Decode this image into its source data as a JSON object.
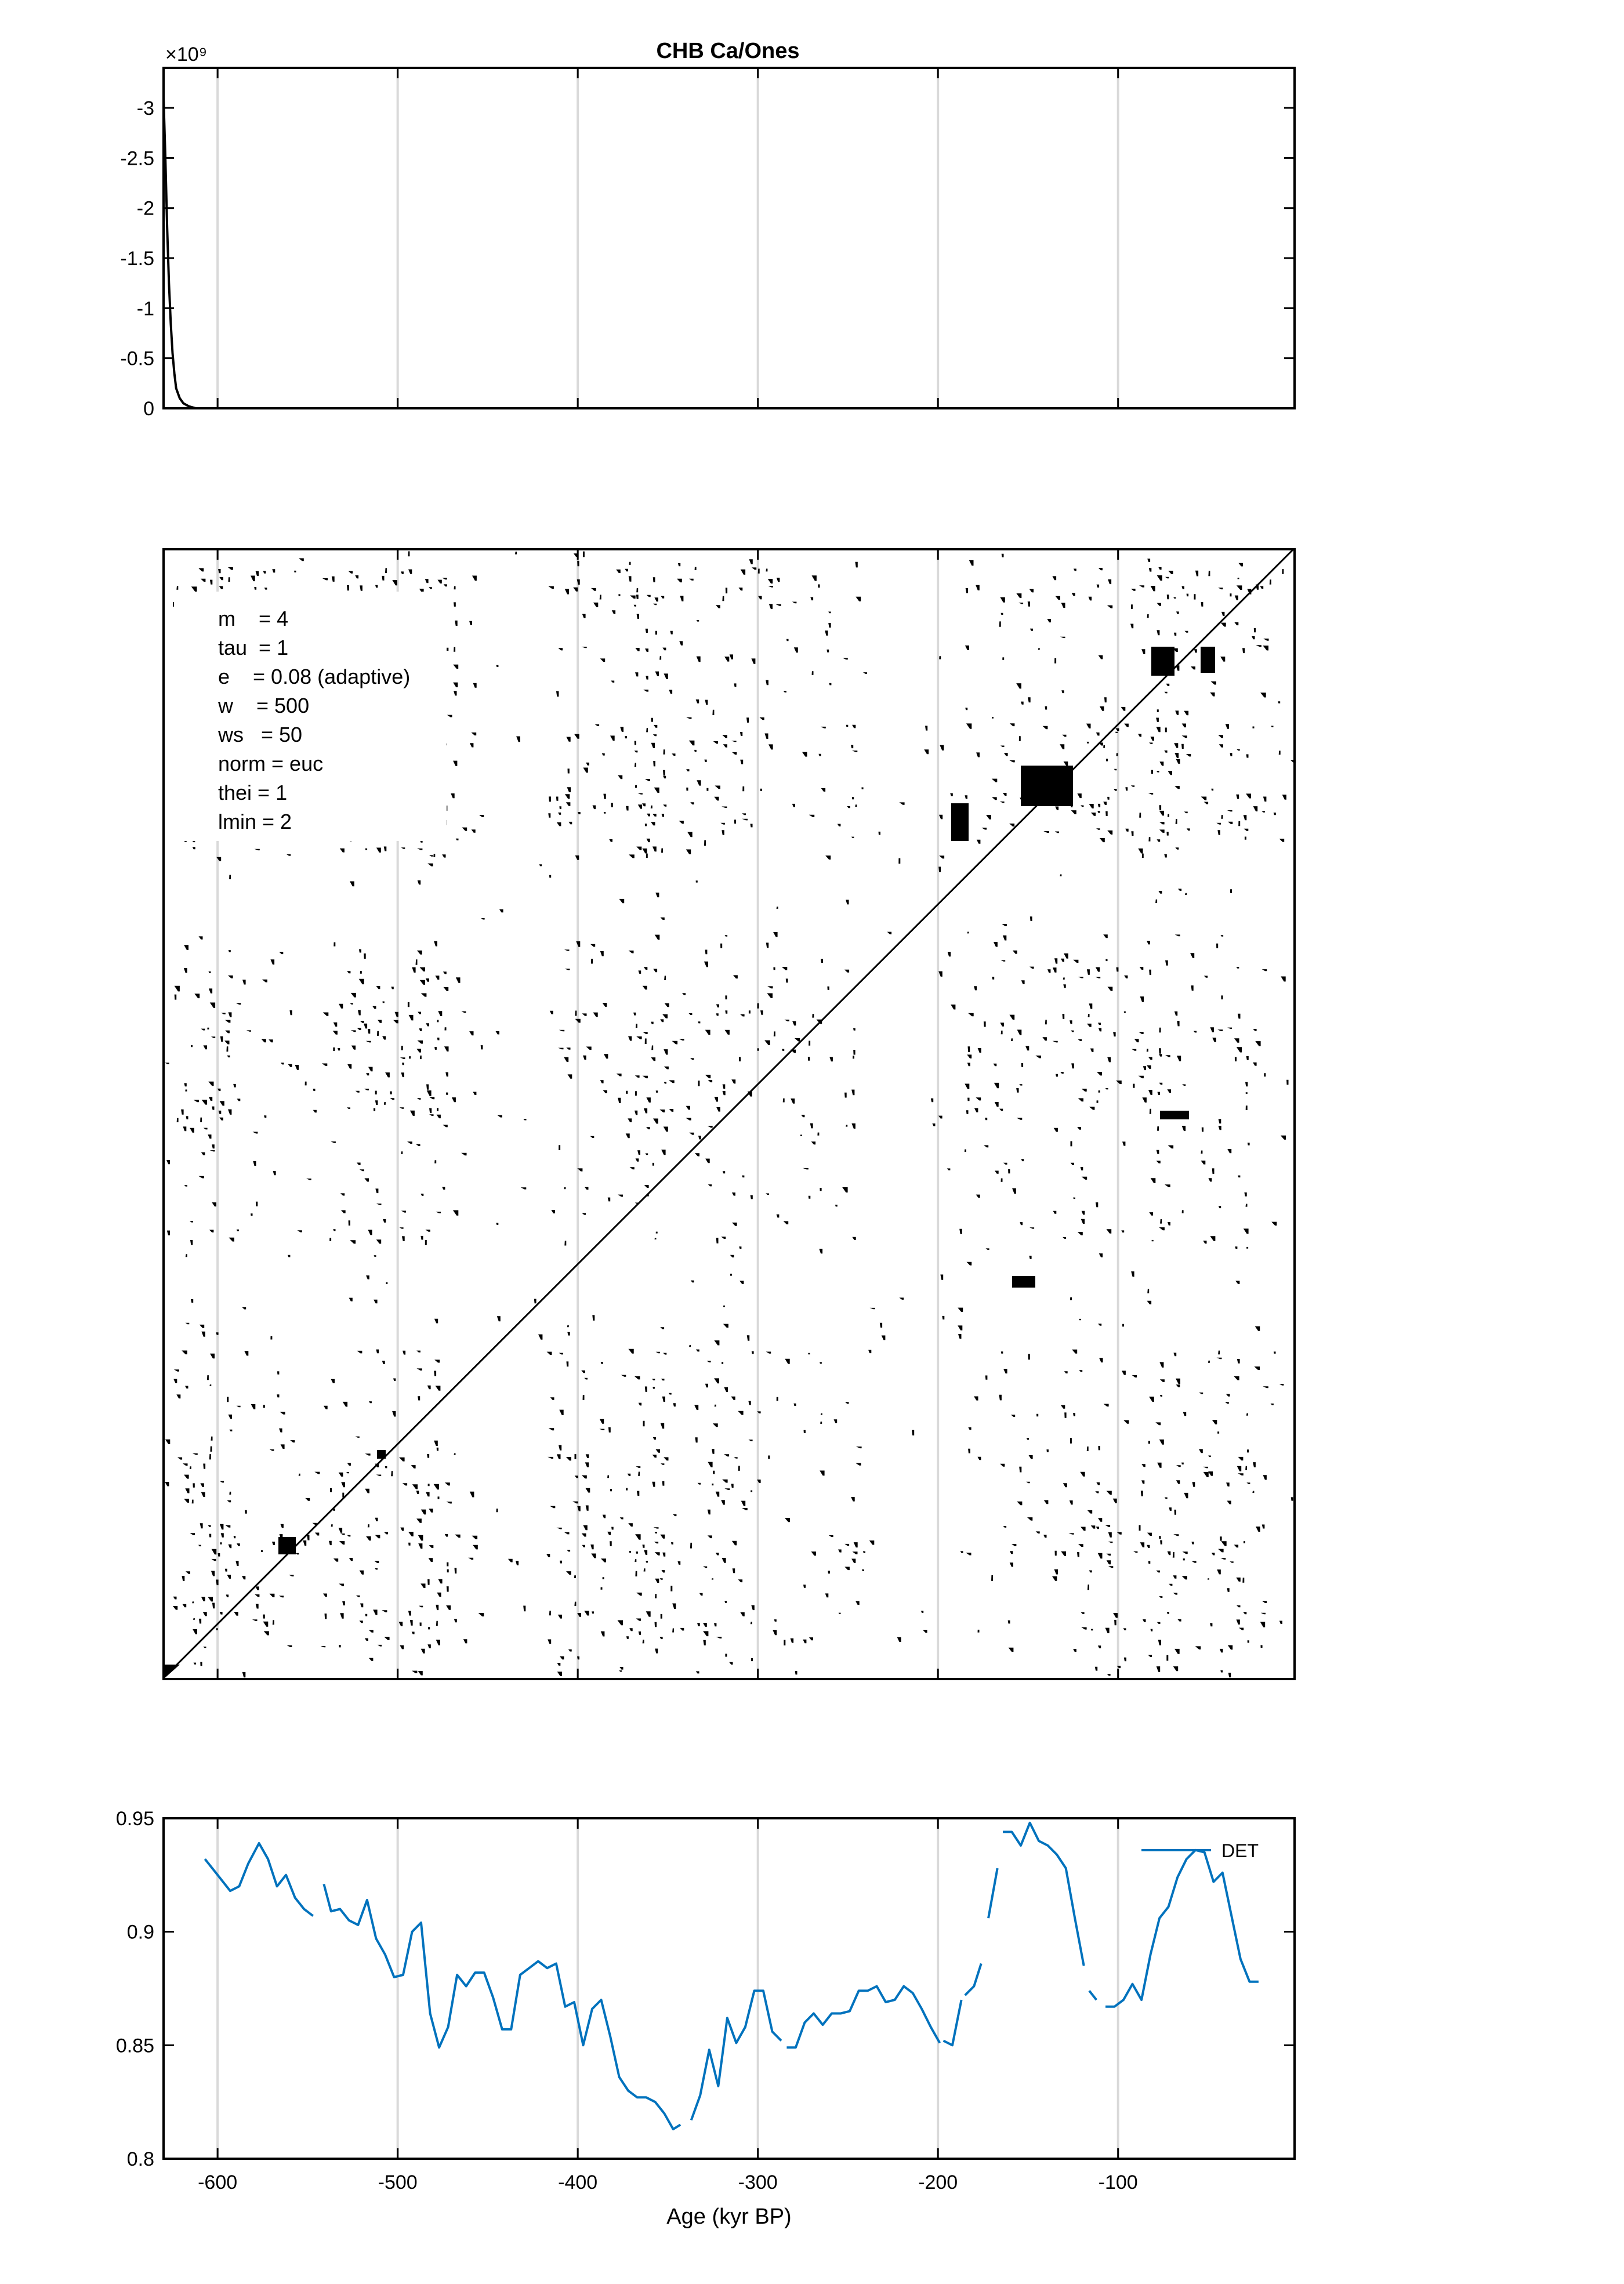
{
  "figure": {
    "title": "CHB Ca/Ones",
    "params": [
      "m    = 4",
      "tau  = 1",
      "e    = 0.08 (adaptive)",
      "w    = 500",
      "ws   = 50",
      "norm = euc",
      "thei = 1",
      "lmin = 2"
    ],
    "colors": {
      "axis": "#000000",
      "grid": "#d9d9d9",
      "det_line": "#0072bd",
      "recurrence": "#000000"
    }
  },
  "chart_data": [
    {
      "type": "line",
      "title": "CHB Ca/Ones",
      "ylabel": "",
      "xlabel": "",
      "y_exponent": "×10⁹",
      "y_direction": "reversed",
      "xlim": [
        -630,
        -2
      ],
      "ylim": [
        0,
        -3.4
      ],
      "x_grid": [
        -600,
        -500,
        -400,
        -300,
        -200,
        -100
      ],
      "yticks": [
        0,
        -0.5,
        -1,
        -1.5,
        -2,
        -2.5,
        -3
      ],
      "ytick_labels": [
        "0",
        "-0.5",
        "-1",
        "-1.5",
        "-2",
        "-2.5",
        "-3"
      ],
      "series": [
        {
          "x": [
            -630,
            -629,
            -628,
            -627,
            -626,
            -625,
            -624,
            -623,
            -621,
            -619,
            -616,
            -612,
            -590,
            -400,
            -200,
            -2
          ],
          "y": [
            -3.1,
            -2.5,
            -1.8,
            -1.25,
            -0.85,
            -0.55,
            -0.35,
            -0.2,
            -0.1,
            -0.05,
            -0.02,
            0,
            0,
            0,
            0,
            0
          ]
        }
      ]
    },
    {
      "type": "heatmap",
      "description_kind": "recurrence plot (binary)",
      "xlim": [
        -630,
        -2
      ],
      "ylim": [
        -630,
        -2
      ],
      "x_grid": [
        -600,
        -500,
        -400,
        -300,
        -200,
        -100
      ]
    },
    {
      "type": "line",
      "xlabel": "Age (kyr BP)",
      "ylabel": "",
      "xlim": [
        -630,
        -2
      ],
      "ylim": [
        0.8,
        0.95
      ],
      "xticks": [
        -600,
        -500,
        -400,
        -300,
        -200,
        -100
      ],
      "xtick_labels": [
        "-600",
        "-500",
        "-400",
        "-300",
        "-200",
        "-100"
      ],
      "yticks": [
        0.8,
        0.85,
        0.9,
        0.95
      ],
      "ytick_labels": [
        "0.8",
        "0.85",
        "0.9",
        "0.95"
      ],
      "legend": {
        "entries": [
          "DET"
        ],
        "location": "top-right"
      },
      "series": [
        {
          "name": "DET",
          "segments": [
            {
              "x": [
                -607,
                -600,
                -593,
                -588,
                -583,
                -577,
                -572,
                -567,
                -562,
                -557,
                -552,
                -547
              ],
              "y": [
                0.932,
                0.925,
                0.918,
                0.92,
                0.93,
                0.939,
                0.932,
                0.92,
                0.925,
                0.915,
                0.91,
                0.907
              ]
            },
            {
              "x": [
                -541,
                -537,
                -532,
                -527,
                -522,
                -517,
                -512,
                -507,
                -502,
                -497,
                -492,
                -487,
                -482,
                -477,
                -472,
                -467,
                -462,
                -457,
                -452,
                -447,
                -442,
                -437,
                -432,
                -427,
                -422,
                -417,
                -412,
                -407,
                -402,
                -397,
                -392,
                -387,
                -382,
                -377,
                -372,
                -367,
                -362,
                -357,
                -352,
                -347,
                -343
              ],
              "y": [
                0.921,
                0.909,
                0.91,
                0.905,
                0.903,
                0.914,
                0.897,
                0.89,
                0.88,
                0.881,
                0.9,
                0.904,
                0.864,
                0.849,
                0.858,
                0.881,
                0.876,
                0.882,
                0.882,
                0.871,
                0.857,
                0.857,
                0.881,
                0.884,
                0.887,
                0.884,
                0.886,
                0.867,
                0.869,
                0.85,
                0.866,
                0.87,
                0.854,
                0.836,
                0.83,
                0.827,
                0.827,
                0.825,
                0.82,
                0.813,
                0.815
              ]
            },
            {
              "x": [
                -337,
                -332,
                -327,
                -322,
                -317,
                -312,
                -307,
                -302,
                -297,
                -292,
                -287
              ],
              "y": [
                0.817,
                0.828,
                0.848,
                0.832,
                0.862,
                0.851,
                0.858,
                0.874,
                0.874,
                0.856,
                0.852
              ]
            },
            {
              "x": [
                -284,
                -279,
                -274,
                -269,
                -264,
                -259,
                -254,
                -249,
                -244,
                -239,
                -234,
                -229,
                -224,
                -219,
                -214,
                -209,
                -204,
                -199
              ],
              "y": [
                0.849,
                0.849,
                0.86,
                0.864,
                0.859,
                0.864,
                0.864,
                0.865,
                0.874,
                0.874,
                0.876,
                0.869,
                0.87,
                0.876,
                0.873,
                0.866,
                0.858,
                0.851
              ]
            },
            {
              "x": [
                -197,
                -192,
                -187
              ],
              "y": [
                0.852,
                0.85,
                0.87
              ]
            },
            {
              "x": [
                -185,
                -180,
                -176
              ],
              "y": [
                0.872,
                0.876,
                0.886
              ]
            },
            {
              "x": [
                -172,
                -167
              ],
              "y": [
                0.906,
                0.928
              ]
            },
            {
              "x": [
                -164,
                -159,
                -154,
                -149,
                -144,
                -139,
                -134,
                -129,
                -124,
                -119
              ],
              "y": [
                0.944,
                0.944,
                0.938,
                0.948,
                0.94,
                0.938,
                0.934,
                0.928,
                0.906,
                0.885
              ]
            },
            {
              "x": [
                -116,
                -112
              ],
              "y": [
                0.874,
                0.87
              ]
            },
            {
              "x": [
                -107,
                -102,
                -97,
                -92,
                -87,
                -82,
                -77,
                -72,
                -67,
                -62,
                -57,
                -52,
                -47,
                -42,
                -37,
                -32,
                -27,
                -22
              ],
              "y": [
                0.867,
                0.867,
                0.87,
                0.877,
                0.87,
                0.89,
                0.906,
                0.911,
                0.924,
                0.932,
                0.936,
                0.935,
                0.922,
                0.926,
                0.907,
                0.888,
                0.878,
                0.878
              ]
            }
          ]
        }
      ]
    }
  ]
}
